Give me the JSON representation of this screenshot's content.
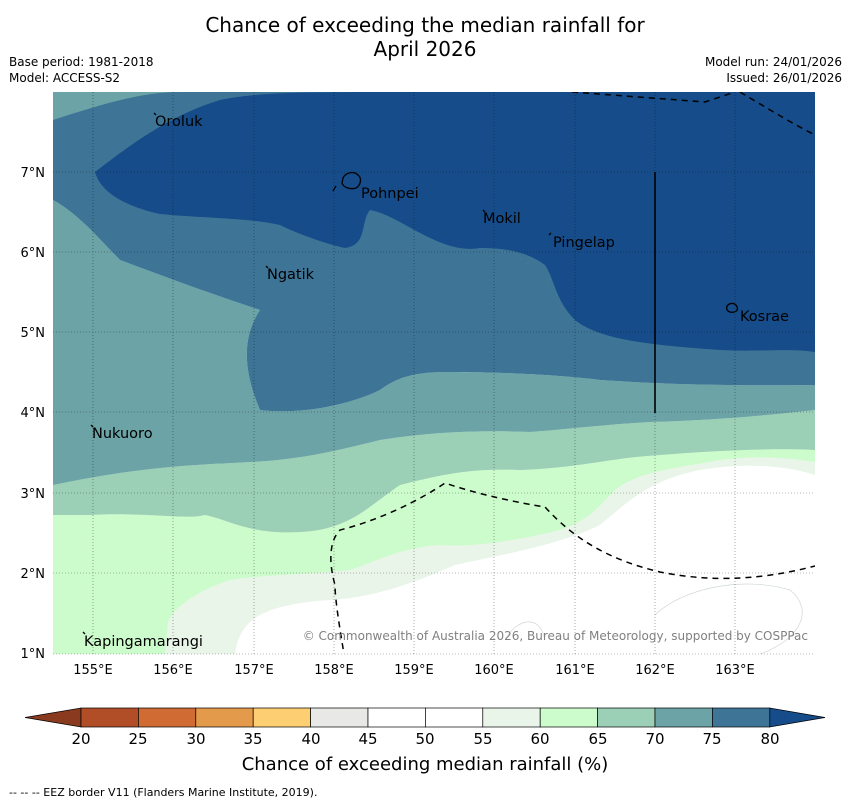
{
  "title": {
    "line1": "Chance of exceeding the median rainfall for",
    "line2": "April 2026"
  },
  "meta": {
    "base_period": "Base period: 1981-2018",
    "model": "Model: ACCESS-S2",
    "model_run": "Model run: 24/01/2026",
    "issued": "Issued: 26/01/2026"
  },
  "axes": {
    "lat_labels": [
      "7°N",
      "6°N",
      "5°N",
      "4°N",
      "3°N",
      "2°N",
      "1°N"
    ],
    "lon_labels": [
      "155°E",
      "156°E",
      "157°E",
      "158°E",
      "159°E",
      "160°E",
      "161°E",
      "162°E",
      "163°E"
    ]
  },
  "places": [
    {
      "name": "Oroluk"
    },
    {
      "name": "Pohnpei"
    },
    {
      "name": "Mokil"
    },
    {
      "name": "Pingelap"
    },
    {
      "name": "Ngatik"
    },
    {
      "name": "Kosrae"
    },
    {
      "name": "Nukuoro"
    },
    {
      "name": "Kapingamarangi"
    }
  ],
  "copyright": "© Commonwealth of Australia 2026, Bureau of Meteorology, supported by COSPPac",
  "colorbar": {
    "ticks": [
      "20",
      "25",
      "30",
      "35",
      "40",
      "45",
      "50",
      "55",
      "60",
      "65",
      "70",
      "75",
      "80"
    ],
    "colors": {
      "below_20": "#8a3a1e",
      "20_25": "#b14d27",
      "25_30": "#cf6b33",
      "30_35": "#e49a4b",
      "35_40": "#fdcf72",
      "40_45": "#e8e8e6",
      "45_50": "#ffffff",
      "50_55": "#ffffff",
      "55_60": "#eaf5ea",
      "60_65": "#ccfccb",
      "65_70": "#9bcfb6",
      "70_75": "#6ba3a6",
      "75_80": "#3e7597",
      "above_80": "#154c89"
    },
    "title": "Chance of exceeding median rainfall (%)"
  },
  "eez_note": "--  --  -- EEZ border V11 (Flanders Marine Institute, 2019)."
}
